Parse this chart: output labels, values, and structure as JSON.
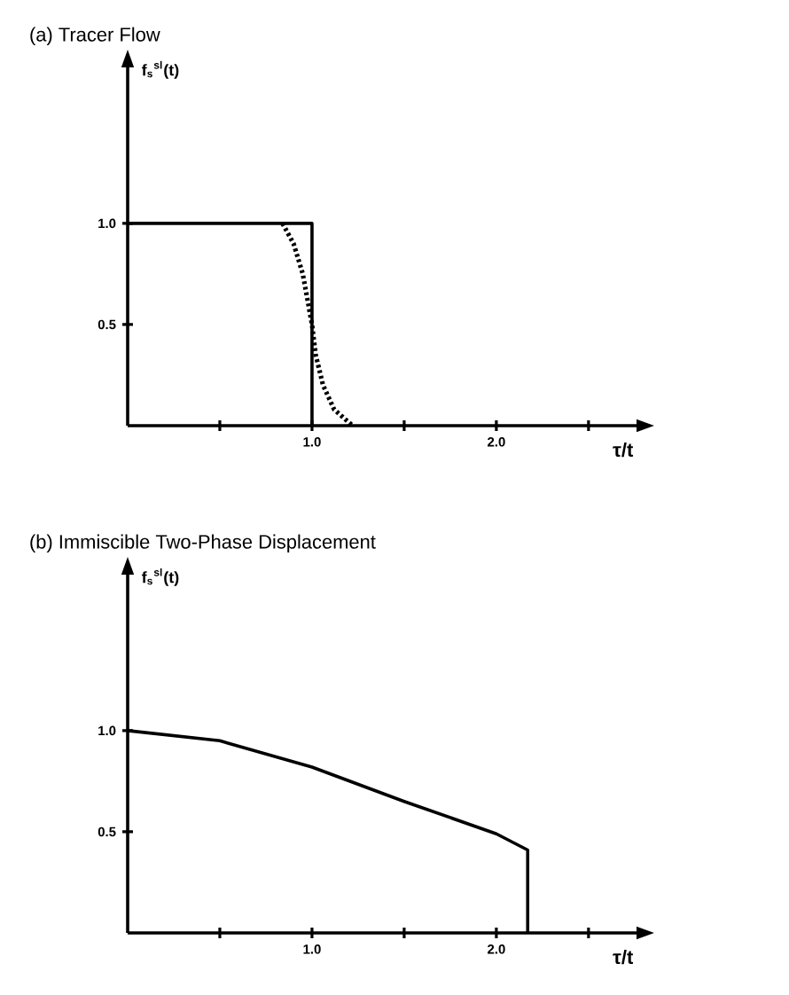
{
  "chart_data": [
    {
      "type": "line",
      "title": "(a) Tracer Flow",
      "xlabel": "τ/t",
      "ylabel": "**f**$_{s}$$^{sl}$(t)",
      "xlim": [
        0,
        2.77
      ],
      "ylim": [
        0,
        1.78
      ],
      "xticks": [
        {
          "value": 0.5,
          "label": null
        },
        {
          "value": 1,
          "label": "1.0"
        },
        {
          "value": 1.5,
          "label": null
        },
        {
          "value": 2,
          "label": "2.0"
        },
        {
          "value": 2.5,
          "label": null
        }
      ],
      "yticks": [
        0.5,
        {
          "value": 1,
          "label": "1.0"
        }
      ],
      "series": [
        {
          "color": "#000000",
          "line_style": "solid",
          "x": [
            0,
            1,
            1
          ],
          "values": [
            1,
            1,
            0
          ]
        },
        {
          "color": "#000000",
          "line_style": "dotted",
          "x": [
            0.84,
            0.9,
            0.95,
            0.98,
            1.0,
            1.02,
            1.06,
            1.12,
            1.22
          ],
          "values": [
            1,
            0.9,
            0.75,
            0.6,
            0.5,
            0.35,
            0.2,
            0.08,
            0
          ]
        }
      ]
    },
    {
      "type": "line",
      "title": "(b) Immiscible Two-Phase Displacement",
      "xlabel": "τ/t",
      "ylabel": "**f**$_{s}$$^{sl}$(t)",
      "xlim": [
        0,
        2.77
      ],
      "ylim": [
        0,
        1.78
      ],
      "xticks": [
        {
          "value": 0.5,
          "label": null
        },
        {
          "value": 1,
          "label": "1.0"
        },
        {
          "value": 1.5,
          "label": null
        },
        {
          "value": 2,
          "label": "2.0"
        },
        {
          "value": 2.5,
          "label": null
        }
      ],
      "yticks": [
        0.5,
        {
          "value": 1,
          "label": "1.0"
        }
      ],
      "series": [
        {
          "color": "#000000",
          "line_style": "solid",
          "x": [
            0,
            0.5,
            1,
            1.5,
            2,
            2.17,
            2.17
          ],
          "values": [
            1,
            0.95,
            0.82,
            0.65,
            0.49,
            0.41,
            0
          ]
        }
      ]
    }
  ]
}
